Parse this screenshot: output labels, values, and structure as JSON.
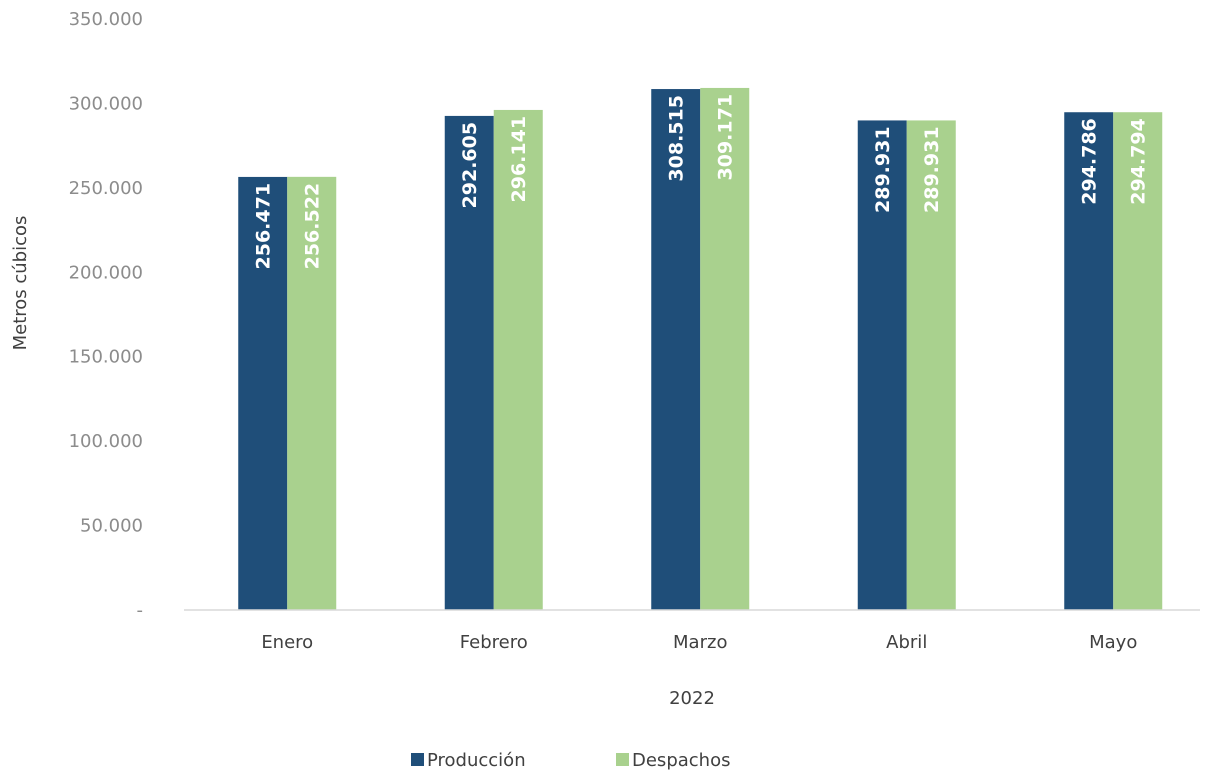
{
  "chart_data": {
    "type": "bar",
    "categories": [
      "Enero",
      "Febrero",
      "Marzo",
      "Abril",
      "Mayo"
    ],
    "series": [
      {
        "name": "Producción",
        "color": "#1f4e79",
        "values": [
          256471,
          292605,
          308515,
          289931,
          294786
        ],
        "labels": [
          "256.471",
          "292.605",
          "308.515",
          "289.931",
          "294.786"
        ]
      },
      {
        "name": "Despachos",
        "color": "#a9d18e",
        "values": [
          256522,
          296141,
          309171,
          289931,
          294794
        ],
        "labels": [
          "256.522",
          "296.141",
          "309.171",
          "289.931",
          "294.794"
        ]
      }
    ],
    "ylim": [
      0,
      350000
    ],
    "yticks": [
      0,
      50000,
      100000,
      150000,
      200000,
      250000,
      300000,
      350000
    ],
    "ytick_labels": [
      "-",
      "50.000",
      "100.000",
      "150.000",
      "200.000",
      "250.000",
      "300.000",
      "350.000"
    ],
    "xlabel": "2022",
    "ylabel": "Metros cúbicos",
    "grid": false,
    "legend_position": "bottom"
  }
}
